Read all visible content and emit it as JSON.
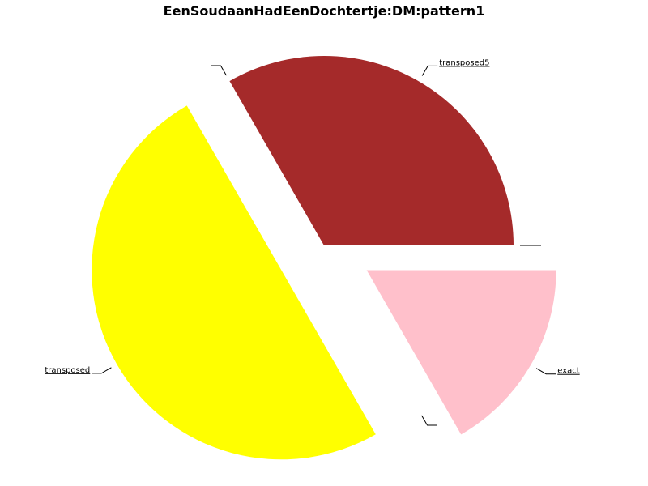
{
  "chart_data": {
    "type": "pie",
    "title": "EenSoudaanHadEenDochtertje:DM:pattern1",
    "slices": [
      {
        "label": "transposed5",
        "value": 33.3,
        "color": "#a52a2a",
        "explode": 0
      },
      {
        "label": "",
        "value": 0.0,
        "color": "#ffffff",
        "explode": 0
      },
      {
        "label": "transposed",
        "value": 50.0,
        "color": "#ffff00",
        "explode": 0.26
      },
      {
        "label": "",
        "value": 0.0,
        "color": "#ffffff",
        "explode": 0
      },
      {
        "label": "exact",
        "value": 16.7,
        "color": "#ffc0cb",
        "explode": 0.26
      },
      {
        "label": "",
        "value": 0.0,
        "color": "#ffffff",
        "explode": 0
      }
    ],
    "start_angle": 0,
    "direction": "counterclockwise",
    "legend": "none"
  }
}
